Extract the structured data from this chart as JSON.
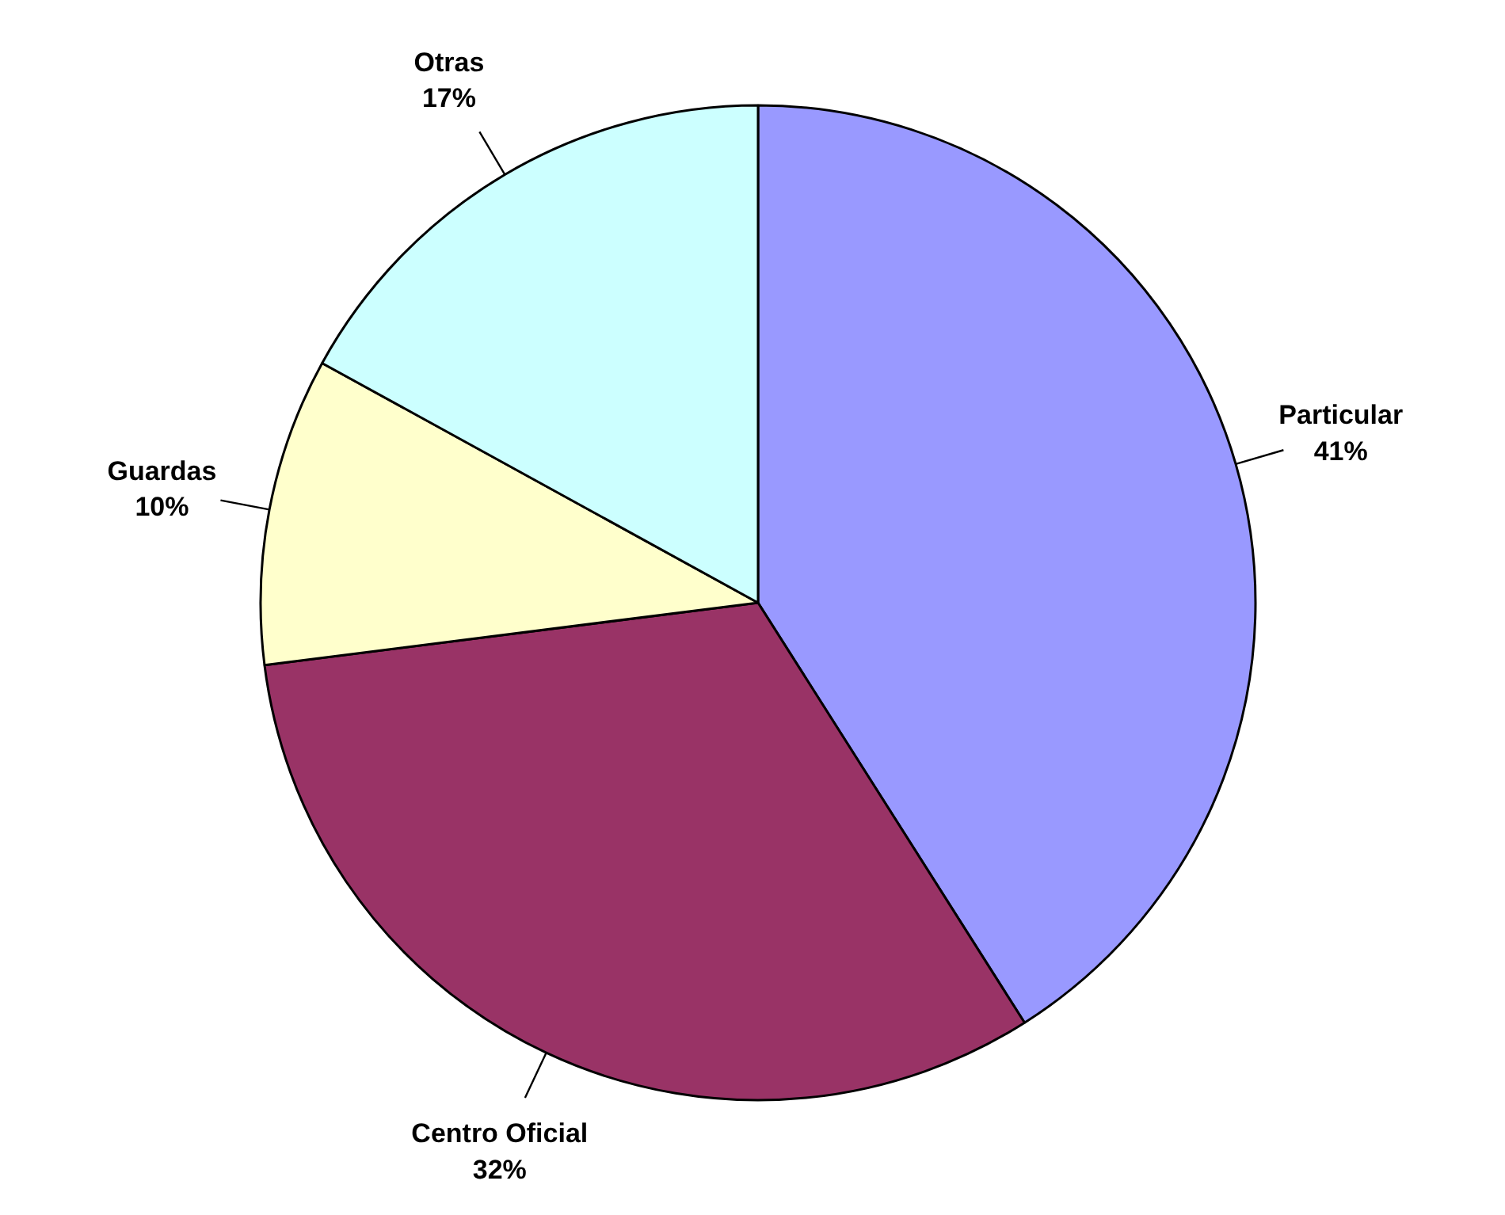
{
  "chart_data": {
    "type": "pie",
    "categories": [
      "Particular",
      "Centro Oficial",
      "Guardas",
      "Otras"
    ],
    "values": [
      41,
      32,
      10,
      17
    ],
    "colors": [
      "#9999ff",
      "#993366",
      "#ffffcc",
      "#ccffff"
    ],
    "value_labels": [
      "41%",
      "32%",
      "10%",
      "17%"
    ]
  }
}
